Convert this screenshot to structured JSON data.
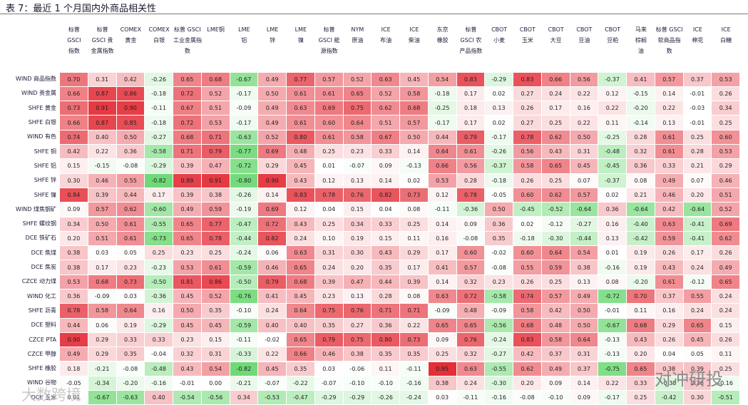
{
  "title": "表 7：最近 1 个月国内外商品相关性",
  "watermark": {
    "left": "大数跨境",
    "right": "对冲研投"
  },
  "colors": {
    "positive": "#e2201e",
    "negative": "#29c837",
    "neutral": "#ffffff"
  },
  "chart_data": {
    "type": "heatmap",
    "columns": [
      [
        "标普",
        "GSCI",
        "指数"
      ],
      [
        "标普",
        "GSCI 贵",
        "金属指数"
      ],
      [
        "COMEX",
        "黄金"
      ],
      [
        "COMEX",
        "白银"
      ],
      [
        "标普 GSCI",
        "工业金属指",
        "数"
      ],
      [
        "LME铜"
      ],
      [
        "LME",
        "铝"
      ],
      [
        "LME",
        "锌"
      ],
      [
        "LME",
        "镍"
      ],
      [
        "标普",
        "GSCI 能",
        "源指数"
      ],
      [
        "NYM",
        "原油"
      ],
      [
        "ICE",
        "布油"
      ],
      [
        "ICE",
        "柴油"
      ],
      [
        "东京",
        "橡胶"
      ],
      [
        "标普",
        "GSCI 农",
        "产品指数"
      ],
      [
        "CBOT",
        "小麦"
      ],
      [
        "CBOT",
        "玉米"
      ],
      [
        "CBOT",
        "大豆"
      ],
      [
        "CBOT",
        "豆油"
      ],
      [
        "CBOT",
        "豆粕"
      ],
      [
        "马来",
        "棕榈",
        "油"
      ],
      [
        "标普 GSCI",
        "软商品指",
        "数"
      ],
      [
        "ICE",
        "棉花"
      ],
      [
        "ICE",
        "白糖"
      ]
    ],
    "rows": [
      {
        "label": "WIND 商品指数",
        "values": [
          0.7,
          0.31,
          0.42,
          -0.26,
          0.65,
          0.68,
          -0.67,
          0.49,
          0.77,
          0.57,
          0.52,
          0.63,
          0.45,
          0.54,
          0.83,
          -0.29,
          0.83,
          0.66,
          0.56,
          -0.37,
          0.41,
          0.57,
          0.37,
          0.53
        ]
      },
      {
        "label": "WIND 贵金属",
        "values": [
          0.66,
          0.87,
          0.86,
          -0.18,
          0.72,
          0.52,
          -0.17,
          0.5,
          0.61,
          0.61,
          0.65,
          0.52,
          0.58,
          -0.18,
          0.17,
          0.02,
          0.27,
          0.24,
          0.22,
          0.12,
          -0.15,
          0.14,
          -0.01,
          0.26
        ]
      },
      {
        "label": "SHFE 黄金",
        "values": [
          0.73,
          0.91,
          0.9,
          -0.11,
          0.67,
          0.51,
          -0.09,
          0.49,
          0.63,
          0.69,
          0.75,
          0.62,
          0.68,
          -0.25,
          0.18,
          0.13,
          0.26,
          0.17,
          0.16,
          0.22,
          -0.2,
          0.22,
          -0.03,
          0.34
        ]
      },
      {
        "label": "SHFE 白银",
        "values": [
          0.66,
          0.87,
          0.85,
          -0.18,
          0.72,
          0.53,
          -0.17,
          0.49,
          0.61,
          0.6,
          0.64,
          0.51,
          0.57,
          -0.17,
          0.17,
          0.02,
          0.27,
          0.25,
          0.22,
          0.11,
          -0.14,
          0.13,
          -0.01,
          0.25
        ]
      },
      {
        "label": "WIND 有色",
        "values": [
          0.74,
          0.4,
          0.5,
          -0.27,
          0.68,
          0.71,
          -0.63,
          0.52,
          0.8,
          0.61,
          0.58,
          0.67,
          0.5,
          0.44,
          0.79,
          -0.17,
          0.78,
          0.62,
          0.5,
          -0.25,
          0.28,
          0.61,
          0.25,
          0.6
        ]
      },
      {
        "label": "SHFE 铜",
        "values": [
          0.42,
          0.22,
          0.36,
          -0.58,
          0.71,
          0.79,
          -0.77,
          0.69,
          0.48,
          0.25,
          0.23,
          0.33,
          0.14,
          0.64,
          0.61,
          -0.26,
          0.56,
          0.43,
          0.31,
          -0.48,
          0.32,
          0.61,
          0.28,
          0.53
        ]
      },
      {
        "label": "SHFE 铝",
        "values": [
          0.15,
          -0.15,
          -0.08,
          -0.29,
          0.39,
          0.47,
          -0.72,
          0.29,
          0.45,
          0.01,
          -0.07,
          0.09,
          -0.13,
          0.66,
          0.56,
          -0.37,
          0.58,
          0.65,
          0.45,
          -0.45,
          0.36,
          0.33,
          0.21,
          0.29
        ]
      },
      {
        "label": "SHFE 锌",
        "values": [
          0.3,
          0.46,
          0.55,
          -0.82,
          0.89,
          0.91,
          -0.8,
          0.9,
          0.43,
          0.12,
          0.13,
          0.14,
          0.02,
          0.53,
          0.28,
          -0.18,
          0.26,
          0.25,
          0.07,
          -0.37,
          0.08,
          0.49,
          0.07,
          0.46
        ]
      },
      {
        "label": "SHFE 镍",
        "values": [
          0.84,
          0.39,
          0.44,
          0.17,
          0.39,
          0.38,
          -0.26,
          0.14,
          0.83,
          0.78,
          0.76,
          0.82,
          0.73,
          0.12,
          0.78,
          -0.05,
          0.6,
          0.62,
          0.57,
          0.02,
          0.21,
          0.46,
          0.2,
          0.51
        ]
      },
      {
        "label": "WIND 煤焦钢矿",
        "values": [
          0.09,
          0.57,
          0.62,
          -0.6,
          0.49,
          0.59,
          -0.19,
          0.69,
          0.12,
          0.04,
          0.15,
          0.04,
          0.08,
          -0.11,
          -0.36,
          0.5,
          -0.45,
          -0.52,
          -0.64,
          0.36,
          -0.64,
          0.42,
          -0.64,
          0.52
        ]
      },
      {
        "label": "SHFE 螺纹钢",
        "values": [
          0.34,
          0.5,
          0.61,
          -0.55,
          0.65,
          0.77,
          -0.47,
          0.72,
          0.43,
          0.25,
          0.34,
          0.33,
          0.25,
          0.14,
          0.09,
          0.36,
          0.02,
          -0.12,
          -0.27,
          0.16,
          -0.4,
          0.63,
          -0.41,
          0.69
        ]
      },
      {
        "label": "DCE 铁矿石",
        "values": [
          0.2,
          0.51,
          0.61,
          -0.73,
          0.65,
          0.78,
          -0.44,
          0.82,
          0.24,
          0.1,
          0.19,
          0.15,
          0.11,
          0.16,
          -0.08,
          0.35,
          -0.18,
          -0.3,
          -0.44,
          0.13,
          -0.42,
          0.59,
          -0.41,
          0.62
        ]
      },
      {
        "label": "DCE 焦煤",
        "values": [
          0.38,
          0.03,
          0.05,
          0.25,
          0.23,
          0.25,
          -0.24,
          0.06,
          0.63,
          0.31,
          0.3,
          0.43,
          0.29,
          0.17,
          0.6,
          -0.02,
          0.6,
          0.64,
          0.54,
          0.01,
          0.19,
          0.26,
          0.17,
          0.26
        ]
      },
      {
        "label": "DCE 焦炭",
        "values": [
          0.38,
          0.17,
          0.23,
          -0.23,
          0.53,
          0.61,
          -0.59,
          0.46,
          0.65,
          0.24,
          0.2,
          0.35,
          0.17,
          0.41,
          0.57,
          -0.08,
          0.55,
          0.59,
          0.38,
          -0.16,
          0.19,
          0.43,
          0.24,
          0.49
        ]
      },
      {
        "label": "CZCE 动力煤",
        "values": [
          0.53,
          0.68,
          0.73,
          -0.5,
          0.81,
          0.86,
          -0.5,
          0.79,
          0.68,
          0.39,
          0.47,
          0.44,
          0.39,
          0.14,
          0.32,
          0.23,
          0.26,
          0.25,
          0.13,
          0.08,
          -0.2,
          0.61,
          -0.12,
          0.65
        ]
      },
      {
        "label": "WIND 化工",
        "values": [
          0.36,
          -0.09,
          0.03,
          -0.36,
          0.45,
          0.52,
          -0.76,
          0.41,
          0.45,
          0.23,
          0.13,
          0.28,
          0.08,
          0.63,
          0.72,
          -0.58,
          0.74,
          0.57,
          0.49,
          -0.72,
          0.7,
          0.37,
          0.55,
          0.24
        ]
      },
      {
        "label": "SHFE 沥青",
        "values": [
          0.78,
          0.58,
          0.64,
          0.16,
          0.5,
          0.35,
          -0.1,
          0.24,
          0.64,
          0.75,
          0.76,
          0.71,
          0.71,
          -0.09,
          0.48,
          -0.09,
          0.58,
          0.42,
          0.5,
          -0.01,
          0.11,
          0.16,
          0.24,
          0.24
        ]
      },
      {
        "label": "DCE 塑料",
        "values": [
          0.44,
          0.06,
          0.19,
          -0.29,
          0.45,
          0.45,
          -0.59,
          0.4,
          0.4,
          0.35,
          0.27,
          0.36,
          0.22,
          0.65,
          0.65,
          -0.56,
          0.68,
          0.48,
          0.5,
          -0.67,
          0.68,
          0.29,
          0.65,
          0.15
        ]
      },
      {
        "label": "CZCE PTA",
        "values": [
          0.9,
          0.29,
          0.33,
          0.33,
          0.23,
          0.15,
          -0.11,
          -0.02,
          0.65,
          0.79,
          0.75,
          0.8,
          0.73,
          0.09,
          0.76,
          -0.24,
          0.83,
          0.58,
          0.64,
          -0.13,
          0.43,
          0.26,
          0.45,
          0.26
        ]
      },
      {
        "label": "CZCE 甲醇",
        "values": [
          0.49,
          0.29,
          0.35,
          -0.04,
          0.32,
          0.31,
          -0.33,
          0.22,
          0.66,
          0.46,
          0.38,
          0.35,
          0.35,
          0.25,
          0.32,
          -0.27,
          0.42,
          0.37,
          0.31,
          -0.13,
          0.2,
          0.04,
          0.05,
          0.11
        ]
      },
      {
        "label": "SHFE 橡胶",
        "values": [
          0.18,
          -0.21,
          -0.08,
          -0.48,
          0.43,
          0.54,
          -0.82,
          0.45,
          0.35,
          0.03,
          -0.06,
          0.11,
          -0.11,
          0.95,
          0.63,
          -0.55,
          0.62,
          0.49,
          0.37,
          -0.75,
          0.65,
          0.38,
          0.39,
          0.25
        ]
      },
      {
        "label": "WIND 谷物",
        "values": [
          -0.05,
          -0.34,
          -0.2,
          -0.16,
          -0.01,
          0.0,
          -0.21,
          -0.07,
          -0.22,
          -0.07,
          -0.1,
          -0.1,
          -0.16,
          0.38,
          0.24,
          -0.3,
          0.2,
          0.09,
          0.14,
          0.22,
          0.33,
          -0.3,
          0.36,
          -0.16
        ]
      },
      {
        "label": "DCE 玉米",
        "values": [
          0.01,
          -0.67,
          -0.63,
          0.4,
          -0.54,
          -0.56,
          0.34,
          -0.53,
          -0.47,
          -0.29,
          -0.29,
          -0.26,
          -0.24,
          0.03,
          -0.11,
          -0.16,
          -0.08,
          -0.1,
          0.09,
          -0.17,
          0.25,
          -0.42,
          0.3,
          -0.51
        ]
      }
    ]
  }
}
